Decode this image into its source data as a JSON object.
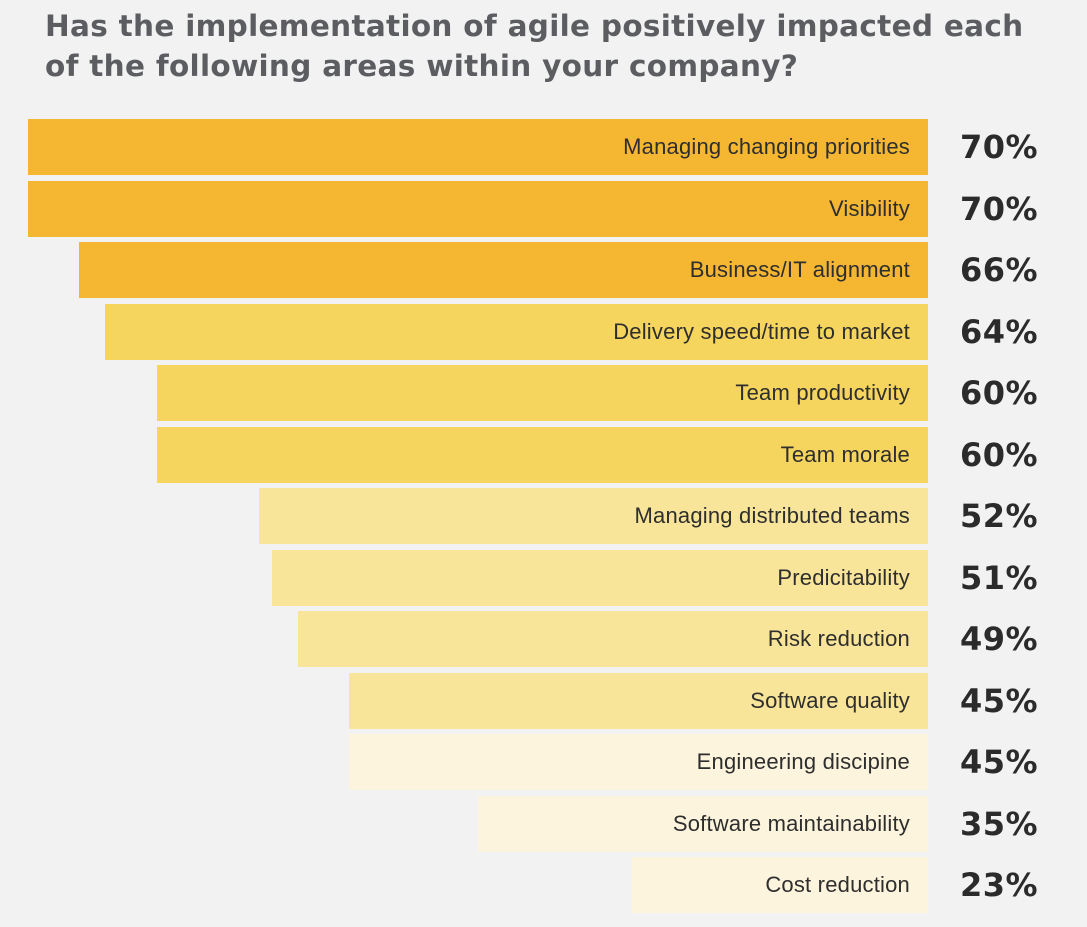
{
  "chart_data": {
    "type": "bar",
    "orientation": "horizontal",
    "title": "Has the implementation of agile positively impacted each of the following areas within your company?",
    "categories": [
      "Managing changing priorities",
      "Visibility",
      "Business/IT alignment",
      "Delivery speed/time to market",
      "Team productivity",
      "Team morale",
      "Managing distributed teams",
      "Predicitability",
      "Risk reduction",
      "Software quality",
      "Engineering discipine",
      "Software maintainability",
      "Cost reduction"
    ],
    "values": [
      70,
      70,
      66,
      64,
      60,
      60,
      52,
      51,
      49,
      45,
      45,
      35,
      23
    ],
    "value_labels": [
      "70%",
      "70%",
      "66%",
      "64%",
      "60%",
      "60%",
      "52%",
      "51%",
      "49%",
      "45%",
      "45%",
      "35%",
      "23%"
    ],
    "xlim": [
      0,
      70
    ],
    "colors": [
      "#f5b731",
      "#f5b731",
      "#f5b731",
      "#f5d55e",
      "#f5d55e",
      "#f5d55e",
      "#f8e59a",
      "#f8e59a",
      "#f8e59a",
      "#f8e59a",
      "#fcf4dc",
      "#fcf4dc",
      "#fcf4dc"
    ],
    "grid": false,
    "legend": "none"
  }
}
